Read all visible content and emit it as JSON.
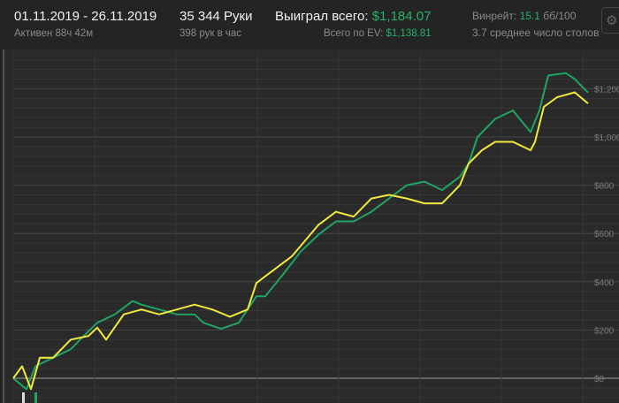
{
  "header": {
    "date_range": "01.11.2019 - 26.11.2019",
    "active": "Активен 88ч 42м",
    "hands": "35 344 Руки",
    "hands_per_hour": "398 рук в час",
    "won_label": "Выиграл всего:",
    "won_value": "$1,184.07",
    "ev_label": "Всего по EV:",
    "ev_value": "$1,138.81",
    "winrate_label": "Винрейт:",
    "winrate_value": "15.1",
    "winrate_unit": "бб/100",
    "tables": "3.7 среднее число столов",
    "settings_icon": "gear-icon"
  },
  "chart_data": {
    "type": "line",
    "xlabel": "",
    "ylabel": "",
    "xlim": [
      0,
      35344
    ],
    "ylim": [
      -100,
      1350
    ],
    "yticks": [
      0,
      200,
      400,
      600,
      800,
      1000,
      1200
    ],
    "ytick_labels": [
      "$0",
      "$200",
      "$400",
      "$600",
      "$800",
      "$1,000",
      "$1,200"
    ],
    "grid": true,
    "series": [
      {
        "name": "Выиграл всего",
        "color": "#1fa463",
        "x": [
          0,
          816,
          1359,
          2447,
          3534,
          4622,
          5166,
          6253,
          7340,
          7884,
          8972,
          10059,
          11147,
          11690,
          12778,
          13865,
          14953,
          15496,
          16584,
          17671,
          18759,
          19846,
          20934,
          22021,
          23108,
          24196,
          25283,
          26371,
          27458,
          28002,
          28546,
          29633,
          30721,
          31808,
          32352,
          32896,
          33983,
          34527,
          35344
        ],
        "y": [
          0,
          -45,
          50,
          85,
          120,
          195,
          230,
          265,
          320,
          305,
          285,
          265,
          265,
          230,
          205,
          230,
          340,
          340,
          430,
          525,
          595,
          650,
          650,
          690,
          745,
          800,
          815,
          780,
          835,
          890,
          1000,
          1075,
          1110,
          1020,
          1110,
          1255,
          1265,
          1240,
          1184
        ]
      },
      {
        "name": "Всего по EV",
        "color": "#f0ea3c",
        "x": [
          0,
          544,
          1087,
          1631,
          2447,
          3534,
          4622,
          5166,
          5709,
          6797,
          7884,
          8972,
          10059,
          11147,
          12234,
          13322,
          14409,
          14953,
          16040,
          17128,
          18759,
          19846,
          20934,
          22021,
          23108,
          24196,
          25283,
          26371,
          27458,
          28002,
          28818,
          29633,
          30721,
          31808,
          32080,
          32624,
          33440,
          34527,
          35344
        ],
        "y": [
          0,
          50,
          -45,
          85,
          85,
          160,
          175,
          210,
          160,
          265,
          285,
          265,
          285,
          305,
          285,
          255,
          285,
          395,
          450,
          505,
          635,
          690,
          670,
          745,
          760,
          745,
          725,
          725,
          800,
          890,
          945,
          980,
          980,
          945,
          980,
          1125,
          1165,
          1185,
          1139
        ]
      }
    ]
  }
}
